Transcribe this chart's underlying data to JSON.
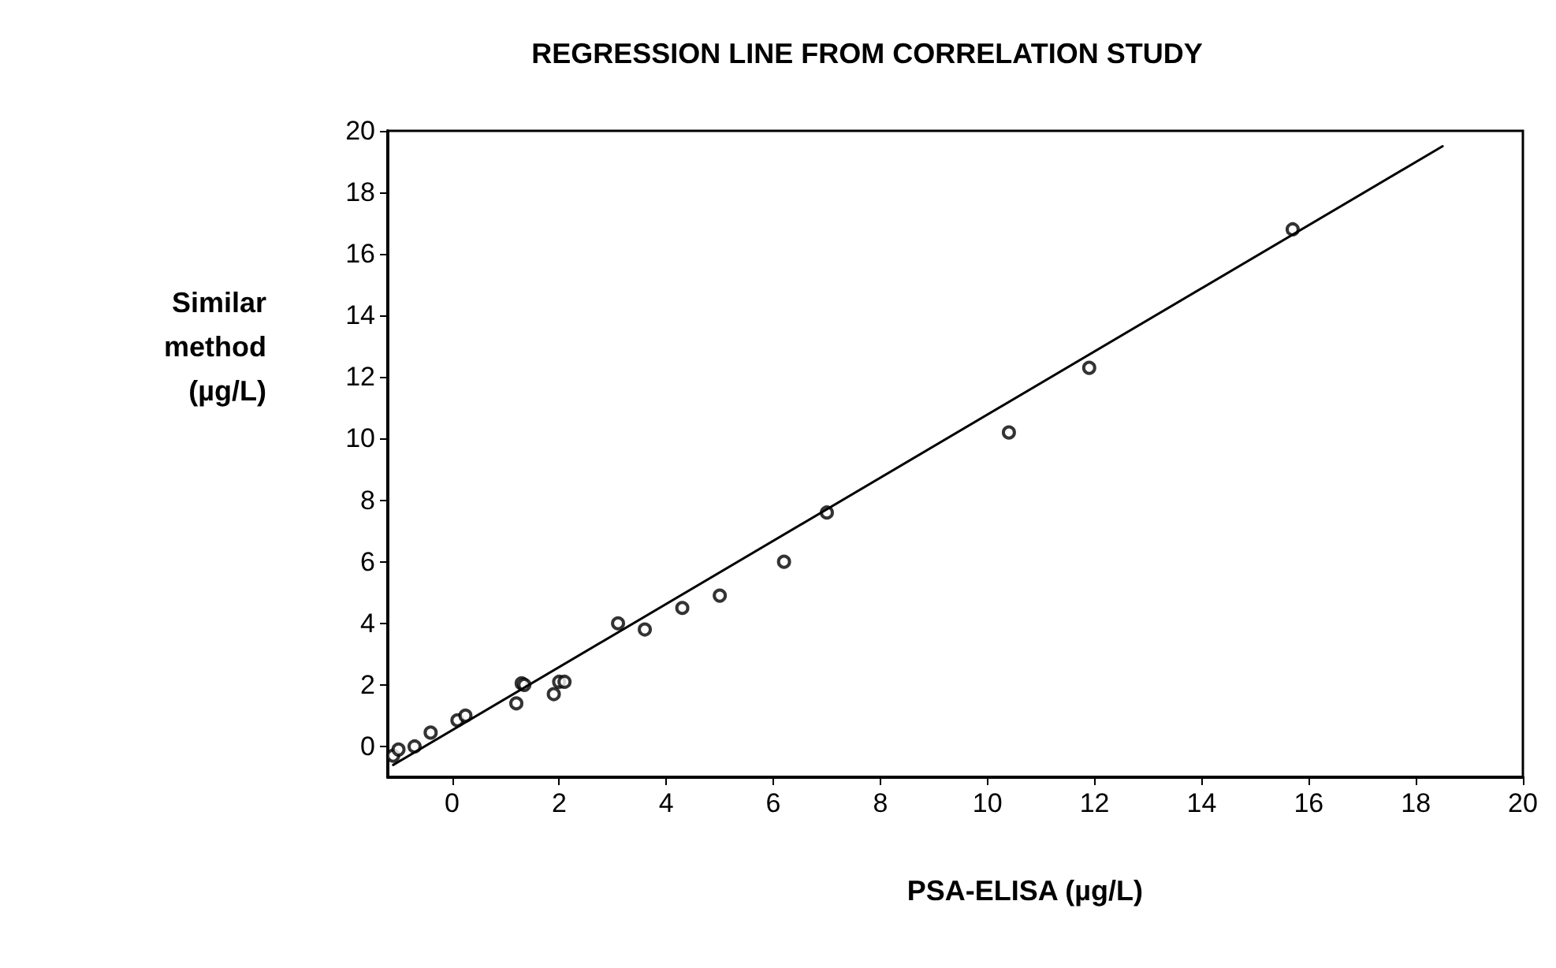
{
  "chart_data": {
    "type": "scatter",
    "title": "REGRESSION LINE FROM CORRELATION STUDY",
    "xlabel": "PSA-ELISA (µg/L)",
    "ylabel": "Similar\nmethod\n(µg/L)",
    "series": [
      {
        "type": "scatter",
        "color": "#000000",
        "x": [
          -1.1,
          -1.0,
          -0.7,
          -0.4,
          0.1,
          0.25,
          1.2,
          1.3,
          1.35,
          1.9,
          2.0,
          2.1,
          3.1,
          3.6,
          4.3,
          5.0,
          6.2,
          7.0,
          10.4,
          11.9,
          15.7
        ],
        "values": [
          -0.3,
          -0.1,
          0.0,
          0.45,
          0.85,
          1.0,
          1.4,
          2.05,
          2.0,
          1.7,
          2.1,
          2.1,
          4.0,
          3.8,
          4.5,
          4.9,
          6.0,
          7.6,
          10.2,
          12.3,
          16.8
        ]
      },
      {
        "type": "line",
        "color": "#000000",
        "marker": "none",
        "x": [
          -1.1,
          18.5
        ],
        "values": [
          -0.6,
          19.5
        ]
      }
    ],
    "xlim": [
      -1.2,
      20
    ],
    "xticks": [
      0,
      2,
      4,
      6,
      8,
      10,
      12,
      14,
      16,
      18,
      20
    ],
    "ylim": [
      -1,
      20
    ],
    "yticks": [
      0,
      2,
      4,
      6,
      8,
      10,
      12,
      14,
      16,
      18,
      20
    ],
    "grid": false,
    "marker": "circle",
    "line_style": "solid"
  }
}
